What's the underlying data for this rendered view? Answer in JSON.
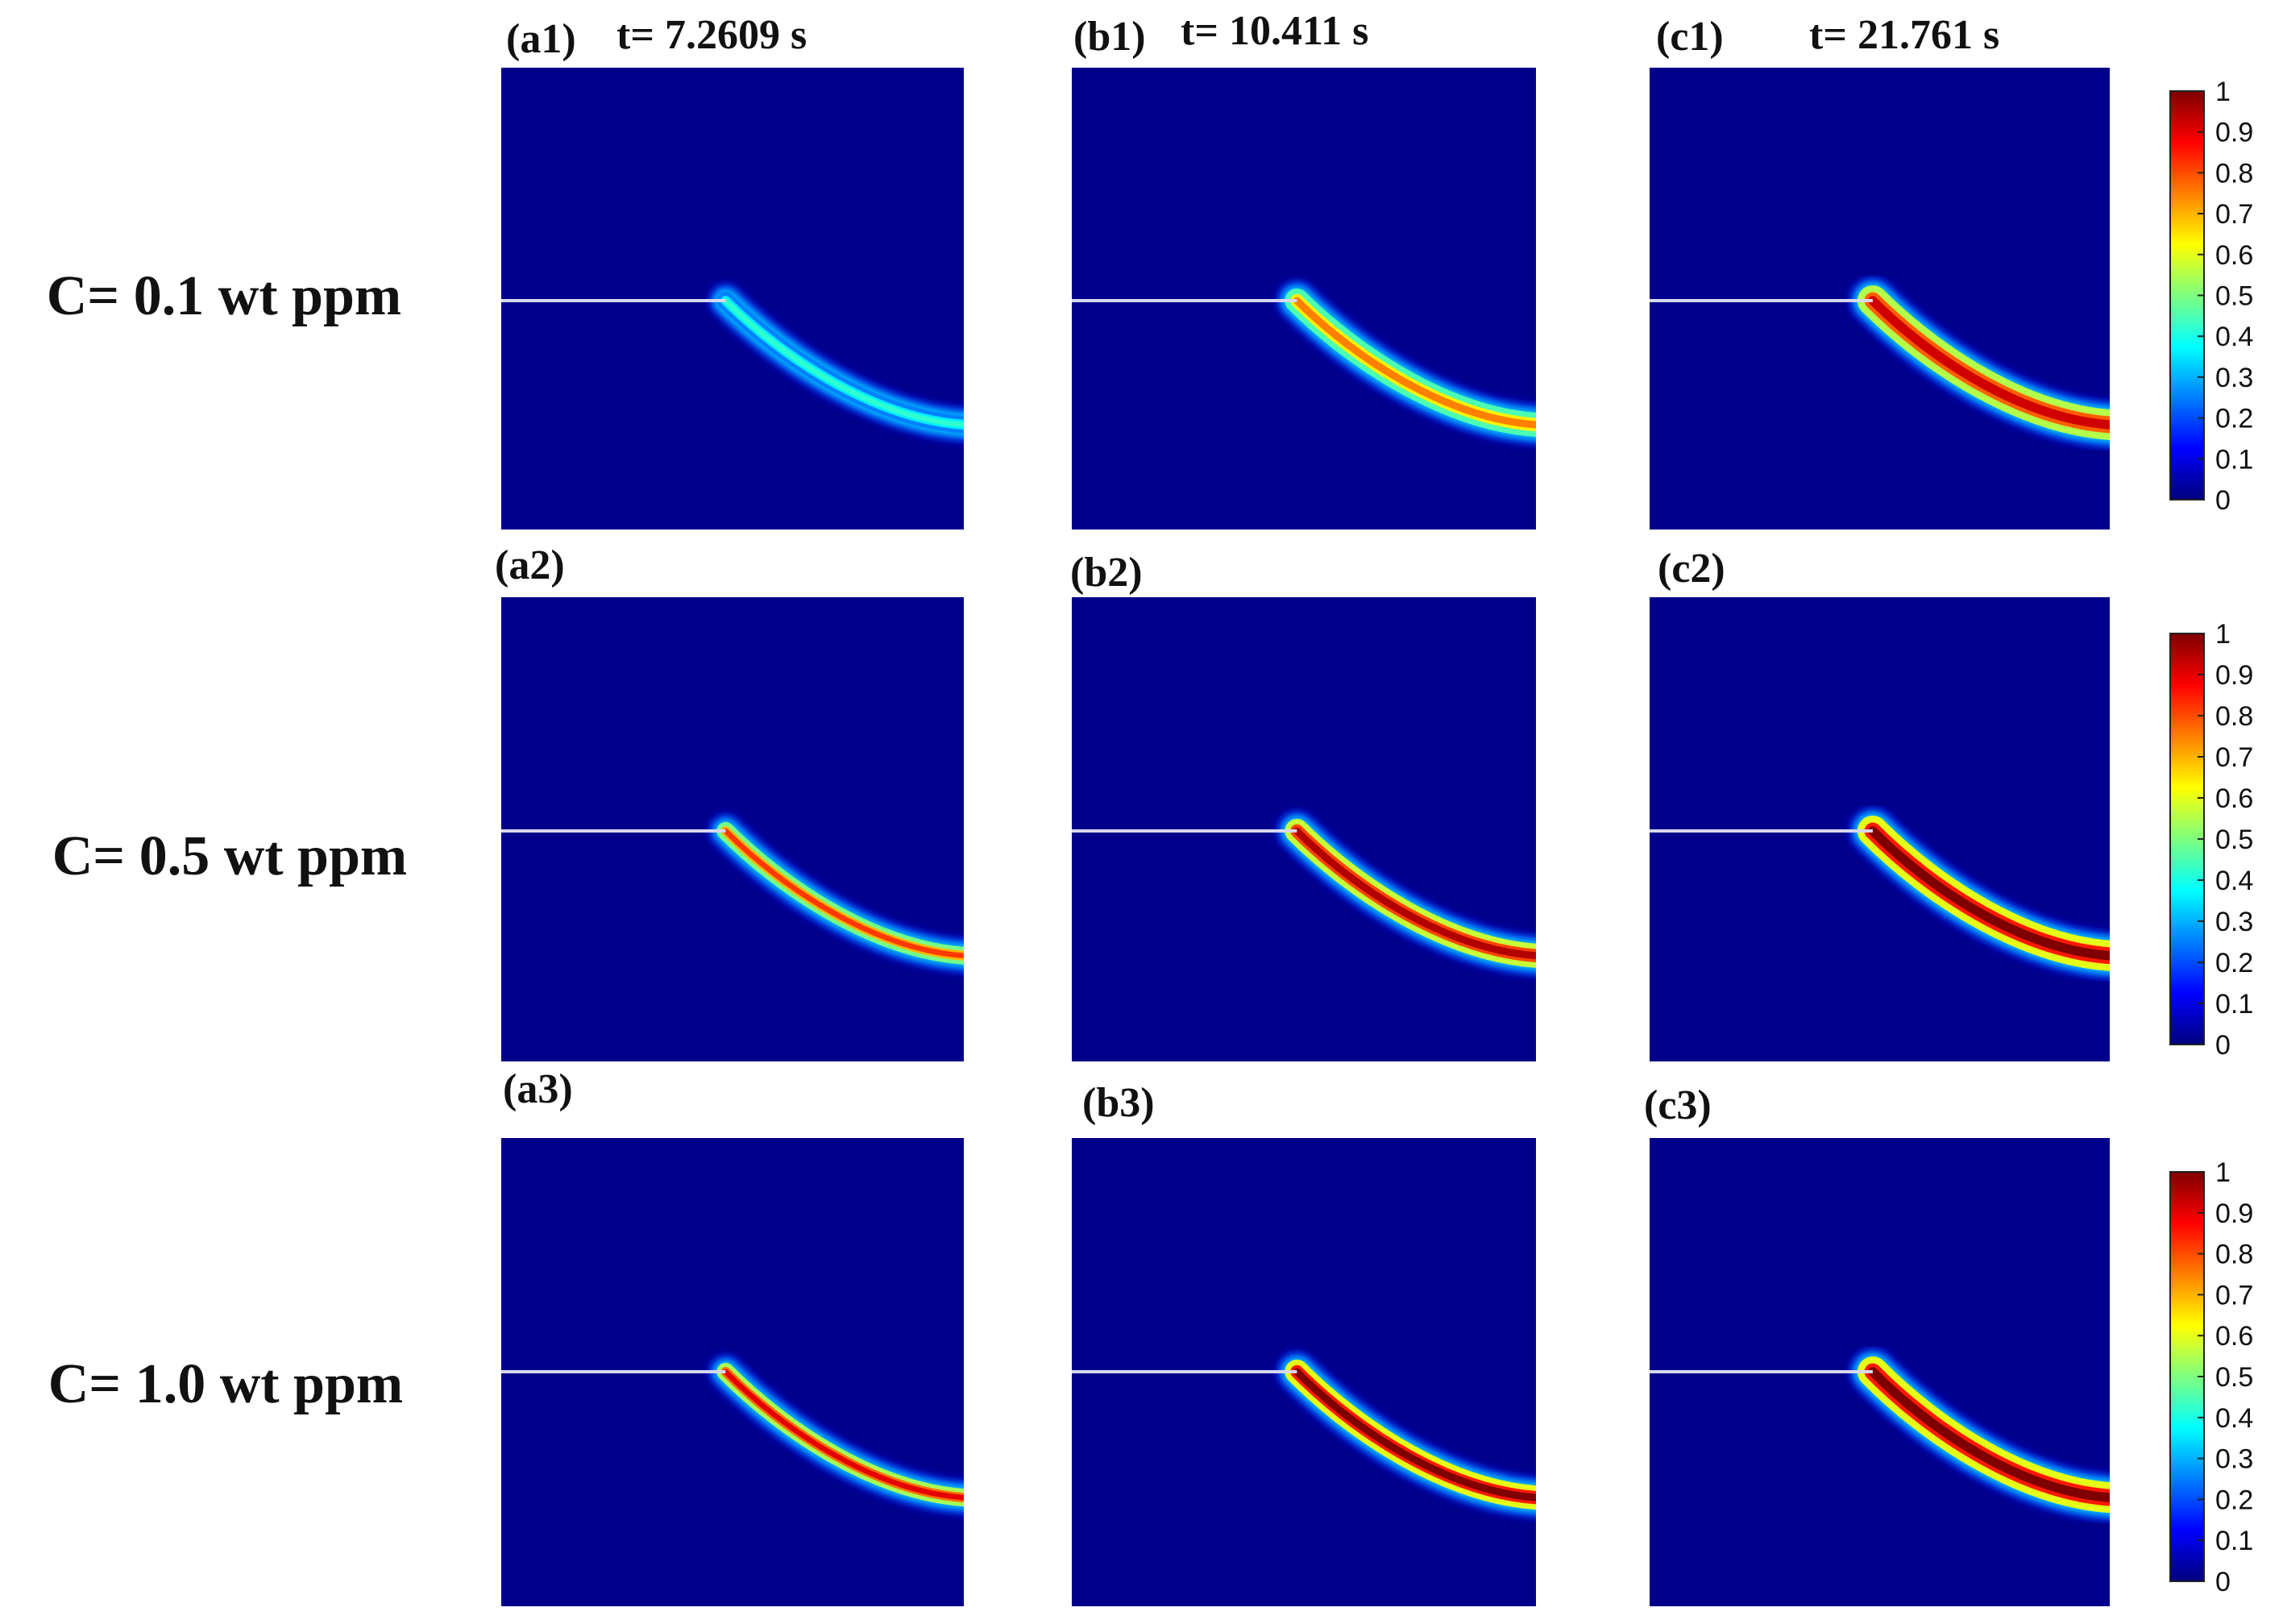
{
  "chart_data": {
    "type": "heatmap",
    "rows": [
      {
        "label": "C= 0.1 wt ppm"
      },
      {
        "label": "C= 0.5 wt ppm"
      },
      {
        "label": "C= 1.0 wt ppm"
      }
    ],
    "columns": [
      {
        "time": "t= 7.2609 s"
      },
      {
        "time": "t= 10.411 s"
      },
      {
        "time": "t= 21.761 s"
      }
    ],
    "panel_ids": [
      [
        "(a1)",
        "(b1)",
        "(c1)"
      ],
      [
        "(a2)",
        "(b2)",
        "(c2)"
      ],
      [
        "(a3)",
        "(b3)",
        "(c3)"
      ]
    ],
    "peak_intensity": [
      [
        0.42,
        0.75,
        0.92
      ],
      [
        0.82,
        0.95,
        1.0
      ],
      [
        0.9,
        1.0,
        1.0
      ]
    ],
    "colorbar": {
      "min": 0,
      "max": 1,
      "ticks": [
        "1",
        "0.9",
        "0.8",
        "0.7",
        "0.6",
        "0.5",
        "0.4",
        "0.3",
        "0.2",
        "0.1",
        "0"
      ],
      "colormap": [
        "#00007f",
        "#0000ff",
        "#007fff",
        "#00ffff",
        "#7fff7f",
        "#ffff00",
        "#ff7f00",
        "#ff0000",
        "#7f0000"
      ]
    },
    "background_color": "#00008b",
    "crack_line_color": "#d8d8ee"
  }
}
